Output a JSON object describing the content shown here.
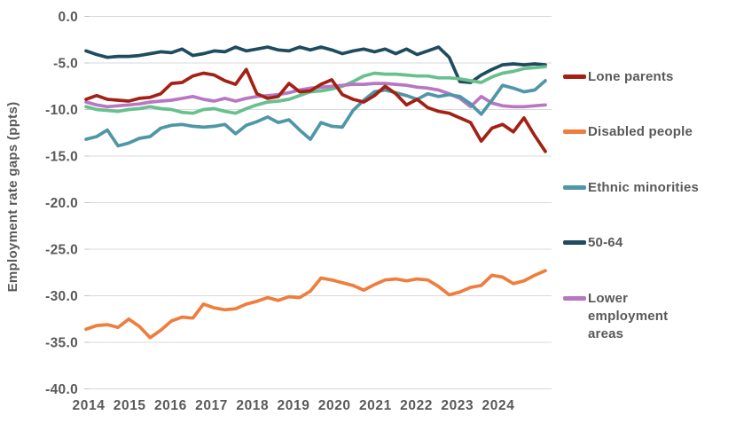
{
  "y_axis": {
    "title": "Employment rate gaps (ppts)",
    "ticks": [
      "0.0",
      "-5.0",
      "-10.0",
      "-15.0",
      "-20.0",
      "-25.0",
      "-30.0",
      "-35.0",
      "-40.0"
    ]
  },
  "x_axis": {
    "labels": [
      "2014",
      "2015",
      "2016",
      "2017",
      "2018",
      "2019",
      "2020",
      "2021",
      "2022",
      "2023",
      "2024"
    ]
  },
  "legend": {
    "items": [
      {
        "label": "Lone parents",
        "color": "#a32114"
      },
      {
        "label": "Disabled people",
        "color": "#ef7d3c"
      },
      {
        "label": "Ethnic minorities",
        "color": "#4f96a8"
      },
      {
        "label": "50-64",
        "color": "#1e4c5e"
      },
      {
        "label": "Lower employment areas",
        "color": "#b777c2"
      }
    ]
  },
  "colors": {
    "grid": "#d9d9d9",
    "tick": "#c4c4c4",
    "axis_text": "#595959"
  },
  "chart_data": {
    "type": "line",
    "title": "",
    "xlabel": "",
    "ylabel": "Employment rate gaps (ppts)",
    "ylim": [
      -40,
      0
    ],
    "x_start_label": "2014",
    "x_end_label": "2024",
    "points_per_year": 4,
    "grid": true,
    "legend_position": "right",
    "series": [
      {
        "name": "Lone parents",
        "color": "#a32114",
        "in_legend": true,
        "values": [
          -8.9,
          -8.5,
          -8.9,
          -9.0,
          -9.1,
          -8.8,
          -8.7,
          -8.3,
          -7.2,
          -7.1,
          -6.4,
          -6.1,
          -6.3,
          -6.9,
          -7.3,
          -5.7,
          -8.3,
          -8.8,
          -8.6,
          -7.2,
          -8.1,
          -8.0,
          -7.3,
          -6.8,
          -8.4,
          -8.9,
          -9.2,
          -8.5,
          -7.5,
          -8.3,
          -9.5,
          -8.9,
          -9.8,
          -10.2,
          -10.4,
          -10.9,
          -11.4,
          -13.4,
          -12.0,
          -11.6,
          -12.4,
          -10.9,
          -12.8,
          -14.5
        ]
      },
      {
        "name": "Disabled people",
        "color": "#ef7d3c",
        "in_legend": true,
        "values": [
          -33.6,
          -33.2,
          -33.1,
          -33.4,
          -32.5,
          -33.3,
          -34.5,
          -33.7,
          -32.7,
          -32.3,
          -32.4,
          -30.9,
          -31.3,
          -31.5,
          -31.4,
          -30.9,
          -30.6,
          -30.2,
          -30.5,
          -30.1,
          -30.2,
          -29.5,
          -28.1,
          -28.3,
          -28.6,
          -28.9,
          -29.4,
          -28.8,
          -28.3,
          -28.2,
          -28.4,
          -28.2,
          -28.3,
          -29.0,
          -29.9,
          -29.6,
          -29.1,
          -28.9,
          -27.8,
          -28.0,
          -28.7,
          -28.4,
          -27.8,
          -27.3
        ]
      },
      {
        "name": "Ethnic minorities",
        "color": "#4f96a8",
        "in_legend": true,
        "values": [
          -13.2,
          -12.9,
          -12.2,
          -13.9,
          -13.6,
          -13.1,
          -12.9,
          -12.0,
          -11.7,
          -11.6,
          -11.8,
          -11.9,
          -11.8,
          -11.6,
          -12.6,
          -11.7,
          -11.3,
          -10.8,
          -11.4,
          -11.1,
          -12.2,
          -13.2,
          -11.4,
          -11.8,
          -11.9,
          -10.1,
          -9.0,
          -8.1,
          -7.9,
          -8.2,
          -8.5,
          -8.9,
          -8.3,
          -8.6,
          -8.4,
          -8.6,
          -9.4,
          -10.5,
          -9.0,
          -7.4,
          -7.7,
          -8.1,
          -7.9,
          -6.9
        ]
      },
      {
        "name": "50-64",
        "color": "#1e4c5e",
        "in_legend": true,
        "values": [
          -3.7,
          -4.1,
          -4.4,
          -4.3,
          -4.3,
          -4.2,
          -4.0,
          -3.8,
          -3.9,
          -3.5,
          -4.2,
          -4.0,
          -3.7,
          -3.8,
          -3.3,
          -3.7,
          -3.5,
          -3.3,
          -3.6,
          -3.7,
          -3.3,
          -3.6,
          -3.3,
          -3.6,
          -4.0,
          -3.7,
          -3.5,
          -3.8,
          -3.5,
          -4.0,
          -3.5,
          -4.1,
          -3.7,
          -3.3,
          -4.4,
          -7.0,
          -7.1,
          -6.3,
          -5.7,
          -5.2,
          -5.1,
          -5.2,
          -5.1,
          -5.2
        ]
      },
      {
        "name": "Lower employment areas",
        "color": "#b777c2",
        "in_legend": true,
        "values": [
          -9.2,
          -9.5,
          -9.7,
          -9.6,
          -9.5,
          -9.4,
          -9.2,
          -9.1,
          -9.0,
          -8.8,
          -8.6,
          -8.9,
          -9.1,
          -8.8,
          -9.1,
          -8.8,
          -8.6,
          -8.5,
          -8.4,
          -8.2,
          -7.9,
          -7.7,
          -7.6,
          -7.5,
          -7.4,
          -7.3,
          -7.3,
          -7.2,
          -7.2,
          -7.3,
          -7.4,
          -7.6,
          -7.7,
          -7.9,
          -8.3,
          -8.8,
          -9.7,
          -8.6,
          -9.3,
          -9.6,
          -9.7,
          -9.7,
          -9.6,
          -9.5
        ]
      },
      {
        "name": "",
        "color": "#68c08e",
        "in_legend": false,
        "values": [
          -9.7,
          -10.0,
          -10.1,
          -10.2,
          -10.0,
          -9.9,
          -9.7,
          -9.9,
          -10.0,
          -10.3,
          -10.4,
          -10.0,
          -9.9,
          -10.2,
          -10.4,
          -9.9,
          -9.5,
          -9.2,
          -9.1,
          -8.9,
          -8.5,
          -8.1,
          -8.0,
          -7.8,
          -7.5,
          -7.0,
          -6.4,
          -6.1,
          -6.2,
          -6.2,
          -6.3,
          -6.4,
          -6.4,
          -6.6,
          -6.6,
          -6.7,
          -6.9,
          -7.1,
          -6.5,
          -6.1,
          -5.9,
          -5.6,
          -5.5,
          -5.4
        ]
      }
    ]
  }
}
